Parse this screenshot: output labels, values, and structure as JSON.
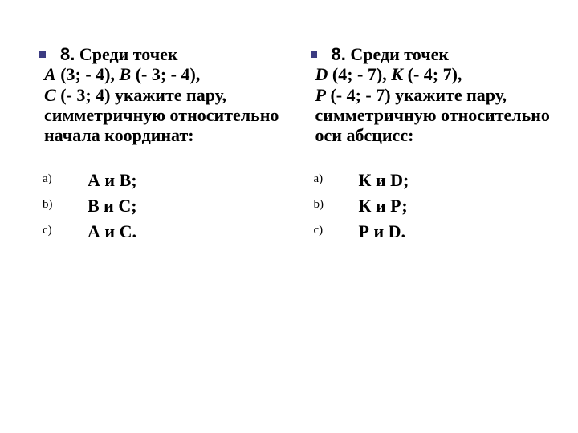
{
  "colors": {
    "background": "#ffffff",
    "text": "#000000",
    "bullet": "#3c3c82"
  },
  "typography": {
    "body_fontsize_pt": 17,
    "option_marker_fontsize_pt": 11,
    "num8_font": "Arial"
  },
  "left": {
    "num": "8.",
    "lead_first": " Среди точек",
    "lead_line2_i": "А ",
    "lead_line2_r1": "(3; - 4), ",
    "lead_line2_i2": "В ",
    "lead_line2_r2": "(- 3; - 4),",
    "lead_line3_i": "С ",
    "lead_line3_r": "(- 3; 4) укажите пару, симметричную относительно начала координат:",
    "options": {
      "a": "А и В;",
      "b": "В и С;",
      "c": "А и С."
    }
  },
  "right": {
    "num": "8.",
    "lead_first": " Среди точек",
    "lead_line2_i": "D ",
    "lead_line2_r1": "(4; - 7), ",
    "lead_line2_i2": "К ",
    "lead_line2_r2": "(- 4; 7),",
    "lead_line3_i": "Р ",
    "lead_line3_r": "(- 4; - 7) укажите пару, симметричную относительно оси абсцисс:",
    "options": {
      "a": "К и D;",
      "b": "К и Р;",
      "c": "Р и D."
    }
  }
}
